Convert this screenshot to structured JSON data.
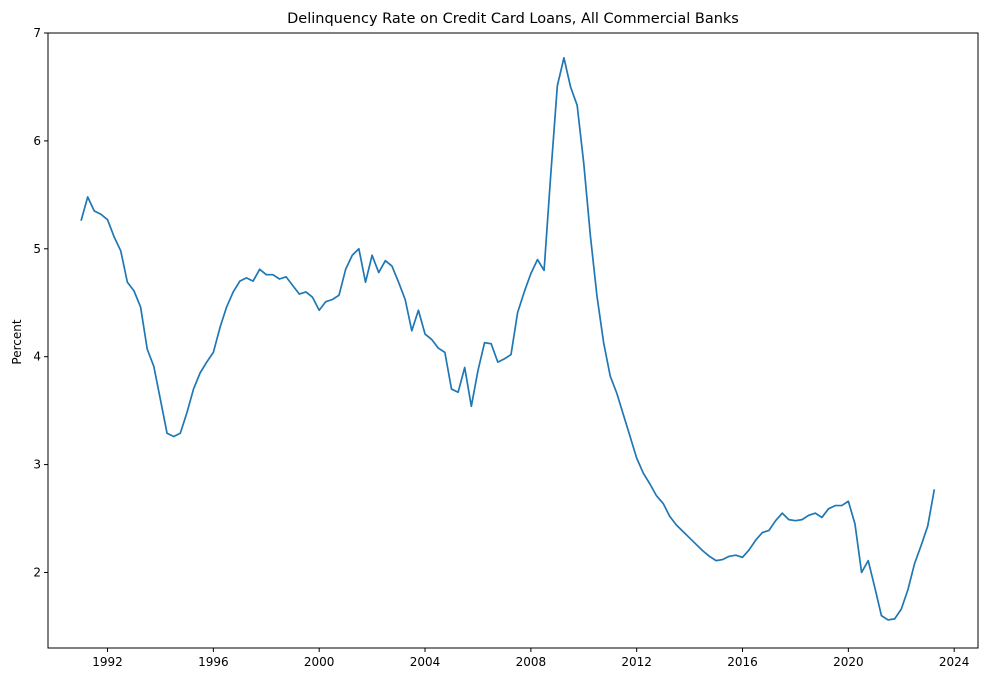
{
  "chart_data": {
    "type": "line",
    "title": "Delinquency Rate on Credit Card Loans, All Commercial Banks",
    "xlabel": "",
    "ylabel": "Percent",
    "xlim": [
      1989.75,
      2024.9
    ],
    "ylim": [
      1.3,
      7.0
    ],
    "x_ticks": [
      1992,
      1996,
      2000,
      2004,
      2008,
      2012,
      2016,
      2020,
      2024
    ],
    "x_tick_labels": [
      "1992",
      "1996",
      "2000",
      "2004",
      "2008",
      "2012",
      "2016",
      "2020",
      "2024"
    ],
    "y_ticks": [
      2,
      3,
      4,
      5,
      6,
      7
    ],
    "y_tick_labels": [
      "2",
      "3",
      "4",
      "5",
      "6",
      "7"
    ],
    "grid": false,
    "line_color": "#1f77b4",
    "series": [
      {
        "x": [
          1991.0,
          1991.25,
          1991.5,
          1991.75,
          1992.0,
          1992.25,
          1992.5,
          1992.75,
          1993.0,
          1993.25,
          1993.5,
          1993.75,
          1994.0,
          1994.25,
          1994.5,
          1994.75,
          1995.0,
          1995.25,
          1995.5,
          1995.75,
          1996.0,
          1996.25,
          1996.5,
          1996.75,
          1997.0,
          1997.25,
          1997.5,
          1997.75,
          1998.0,
          1998.25,
          1998.5,
          1998.75,
          1999.0,
          1999.25,
          1999.5,
          1999.75,
          2000.0,
          2000.25,
          2000.5,
          2000.75,
          2001.0,
          2001.25,
          2001.5,
          2001.75,
          2002.0,
          2002.25,
          2002.5,
          2002.75,
          2003.0,
          2003.25,
          2003.5,
          2003.75,
          2004.0,
          2004.25,
          2004.5,
          2004.75,
          2005.0,
          2005.25,
          2005.5,
          2005.75,
          2006.0,
          2006.25,
          2006.5,
          2006.75,
          2007.0,
          2007.25,
          2007.5,
          2007.75,
          2008.0,
          2008.25,
          2008.5,
          2008.75,
          2009.0,
          2009.25,
          2009.5,
          2009.75,
          2010.0,
          2010.25,
          2010.5,
          2010.75,
          2011.0,
          2011.25,
          2011.5,
          2011.75,
          2012.0,
          2012.25,
          2012.5,
          2012.75,
          2013.0,
          2013.25,
          2013.5,
          2013.75,
          2014.0,
          2014.25,
          2014.5,
          2014.75,
          2015.0,
          2015.25,
          2015.5,
          2015.75,
          2016.0,
          2016.25,
          2016.5,
          2016.75,
          2017.0,
          2017.25,
          2017.5,
          2017.75,
          2018.0,
          2018.25,
          2018.5,
          2018.75,
          2019.0,
          2019.25,
          2019.5,
          2019.75,
          2020.0,
          2020.25,
          2020.5,
          2020.75,
          2021.0,
          2021.25,
          2021.5,
          2021.75,
          2022.0,
          2022.25,
          2022.5,
          2022.75,
          2023.0,
          2023.25
        ],
        "values": [
          5.26,
          5.48,
          5.35,
          5.32,
          5.27,
          5.11,
          4.98,
          4.69,
          4.61,
          4.46,
          4.07,
          3.91,
          3.6,
          3.29,
          3.26,
          3.29,
          3.48,
          3.7,
          3.85,
          3.95,
          4.04,
          4.27,
          4.46,
          4.6,
          4.7,
          4.73,
          4.7,
          4.81,
          4.76,
          4.76,
          4.72,
          4.74,
          4.66,
          4.58,
          4.6,
          4.55,
          4.43,
          4.51,
          4.53,
          4.57,
          4.81,
          4.94,
          5.0,
          4.69,
          4.94,
          4.78,
          4.89,
          4.84,
          4.69,
          4.53,
          4.24,
          4.43,
          4.21,
          4.16,
          4.08,
          4.04,
          3.7,
          3.67,
          3.9,
          3.54,
          3.87,
          4.13,
          4.12,
          3.95,
          3.98,
          4.02,
          4.41,
          4.6,
          4.77,
          4.9,
          4.8,
          5.68,
          6.51,
          6.77,
          6.5,
          6.33,
          5.79,
          5.12,
          4.56,
          4.13,
          3.82,
          3.66,
          3.46,
          3.26,
          3.06,
          2.92,
          2.82,
          2.71,
          2.64,
          2.52,
          2.44,
          2.38,
          2.32,
          2.26,
          2.2,
          2.15,
          2.11,
          2.12,
          2.15,
          2.16,
          2.14,
          2.21,
          2.3,
          2.37,
          2.39,
          2.48,
          2.55,
          2.49,
          2.48,
          2.49,
          2.53,
          2.55,
          2.51,
          2.59,
          2.62,
          2.62,
          2.66,
          2.45,
          2.0,
          2.11,
          1.86,
          1.6,
          1.56,
          1.57,
          1.66,
          1.84,
          2.08,
          2.25,
          2.43,
          2.77
        ]
      }
    ]
  }
}
